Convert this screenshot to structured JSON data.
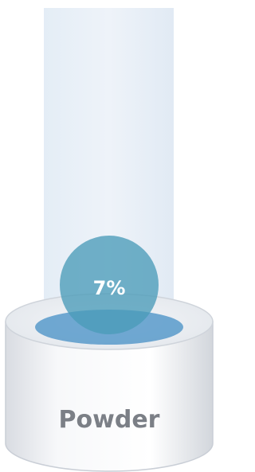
{
  "gauge": {
    "value_label": "7%",
    "label": "Powder"
  }
}
